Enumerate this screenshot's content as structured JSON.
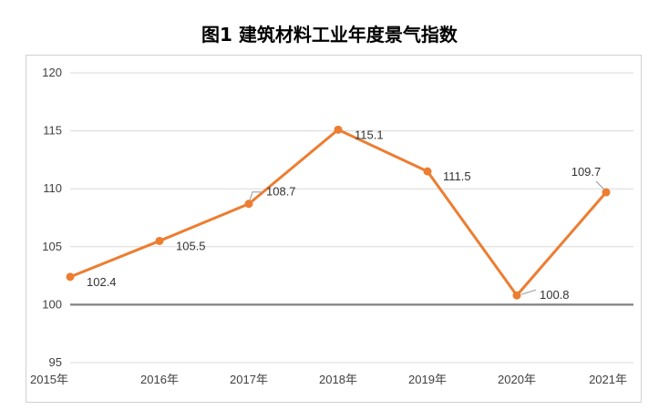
{
  "chart_data": {
    "type": "line",
    "title": "图1  建筑材料工业年度景气指数",
    "categories": [
      "2015年",
      "2016年",
      "2017年",
      "2018年",
      "2019年",
      "2020年",
      "2021年"
    ],
    "series": [
      {
        "values": [
          102.4,
          105.5,
          108.7,
          115.1,
          111.5,
          100.8,
          109.7
        ]
      }
    ],
    "data_labels": [
      "102.4",
      "105.5",
      "108.7",
      "115.1",
      "111.5",
      "100.8",
      "109.7"
    ],
    "ylim": [
      95,
      120
    ],
    "yticks": [
      95,
      100,
      105,
      110,
      115,
      120
    ],
    "reference_line": 100,
    "grid": true,
    "xlabel": "",
    "ylabel": "",
    "colors": {
      "line": "#ED7D31",
      "grid": "#d9d9d9",
      "reference": "#808080",
      "leader": "#a6a6a6"
    }
  }
}
